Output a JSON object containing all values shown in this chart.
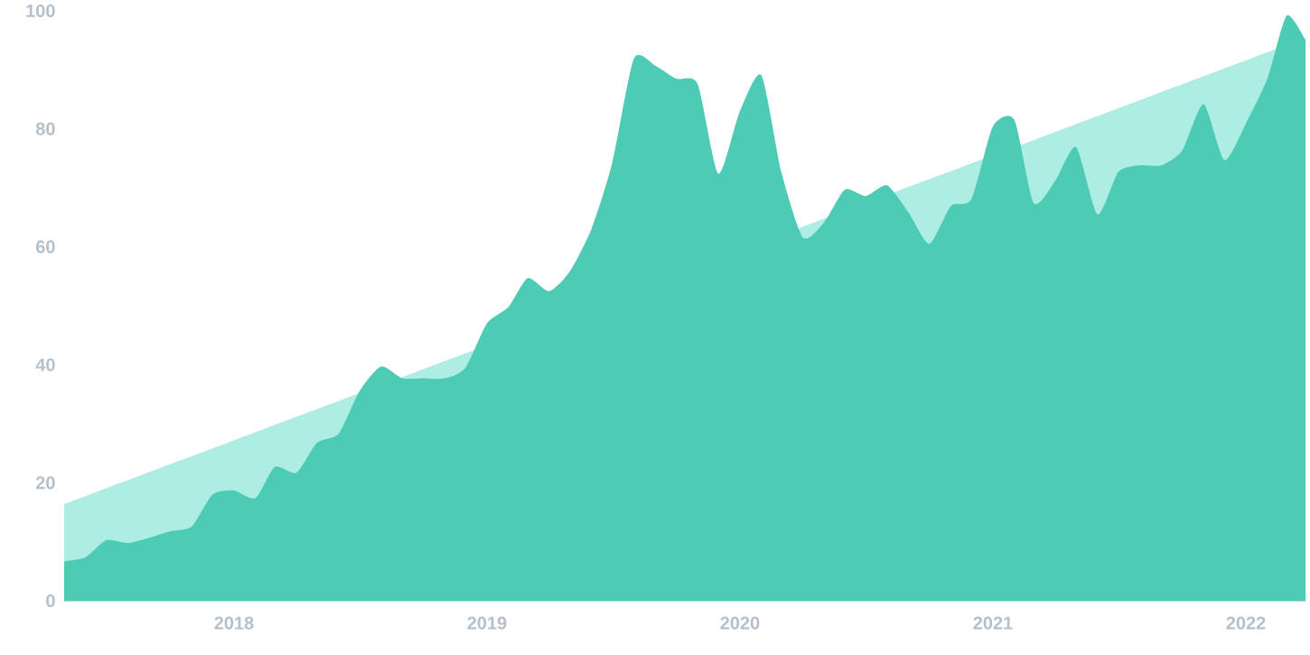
{
  "chart_data": {
    "type": "area",
    "xlim": [
      "2017-05-01",
      "2022-03-28"
    ],
    "ylim": [
      0,
      100
    ],
    "xticks": [
      {
        "value": "2018",
        "label": "2018"
      },
      {
        "value": "2019",
        "label": "2019"
      },
      {
        "value": "2020",
        "label": "2020"
      },
      {
        "value": "2021",
        "label": "2021"
      },
      {
        "value": "2022",
        "label": "2022"
      }
    ],
    "yticks": [
      0,
      20,
      40,
      60,
      80,
      100
    ],
    "series": [
      {
        "color": "#aeede3",
        "x": [
          "2017-05-01",
          "2022-03-28"
        ],
        "values": [
          16.4,
          95.4
        ]
      },
      {
        "color": "#4ecbb4",
        "x": [
          "2017-05",
          "2017-06",
          "2017-07",
          "2017-08",
          "2017-09",
          "2017-10",
          "2017-11",
          "2017-12",
          "2018-01",
          "2018-02",
          "2018-03",
          "2018-04",
          "2018-05",
          "2018-06",
          "2018-07",
          "2018-08",
          "2018-09",
          "2018-10",
          "2018-11",
          "2018-12",
          "2019-01",
          "2019-02",
          "2019-03",
          "2019-04",
          "2019-05",
          "2019-06",
          "2019-07",
          "2019-08",
          "2019-09",
          "2019-10",
          "2019-11",
          "2019-12",
          "2020-01",
          "2020-02",
          "2020-03",
          "2020-04",
          "2020-05",
          "2020-06",
          "2020-07",
          "2020-08",
          "2020-09",
          "2020-10",
          "2020-11",
          "2020-12",
          "2021-01",
          "2021-02",
          "2021-03",
          "2021-04",
          "2021-05",
          "2021-06",
          "2021-07",
          "2021-08",
          "2021-09",
          "2021-10",
          "2021-11",
          "2021-12",
          "2022-01",
          "2022-02",
          "2022-03",
          "2022-03-28"
        ],
        "values": [
          6.7,
          7.4,
          10.3,
          9.8,
          10.7,
          11.8,
          12.6,
          18,
          18.7,
          17.4,
          22.7,
          21.7,
          26.8,
          28.3,
          35.5,
          39.7,
          37.7,
          37.7,
          37.7,
          39.5,
          47,
          49.8,
          54.7,
          52.5,
          55.9,
          63.1,
          74.3,
          91.9,
          90.7,
          88.5,
          87.6,
          72.4,
          83,
          89.1,
          72.7,
          61.6,
          64,
          69.7,
          68.6,
          70.4,
          65.8,
          60.5,
          66.9,
          68.1,
          80.4,
          81.5,
          67.4,
          71.2,
          76.9,
          65.5,
          72.7,
          73.8,
          73.8,
          76.3,
          84.2,
          74.7,
          80.9,
          88.5,
          99.2,
          95
        ]
      }
    ]
  }
}
